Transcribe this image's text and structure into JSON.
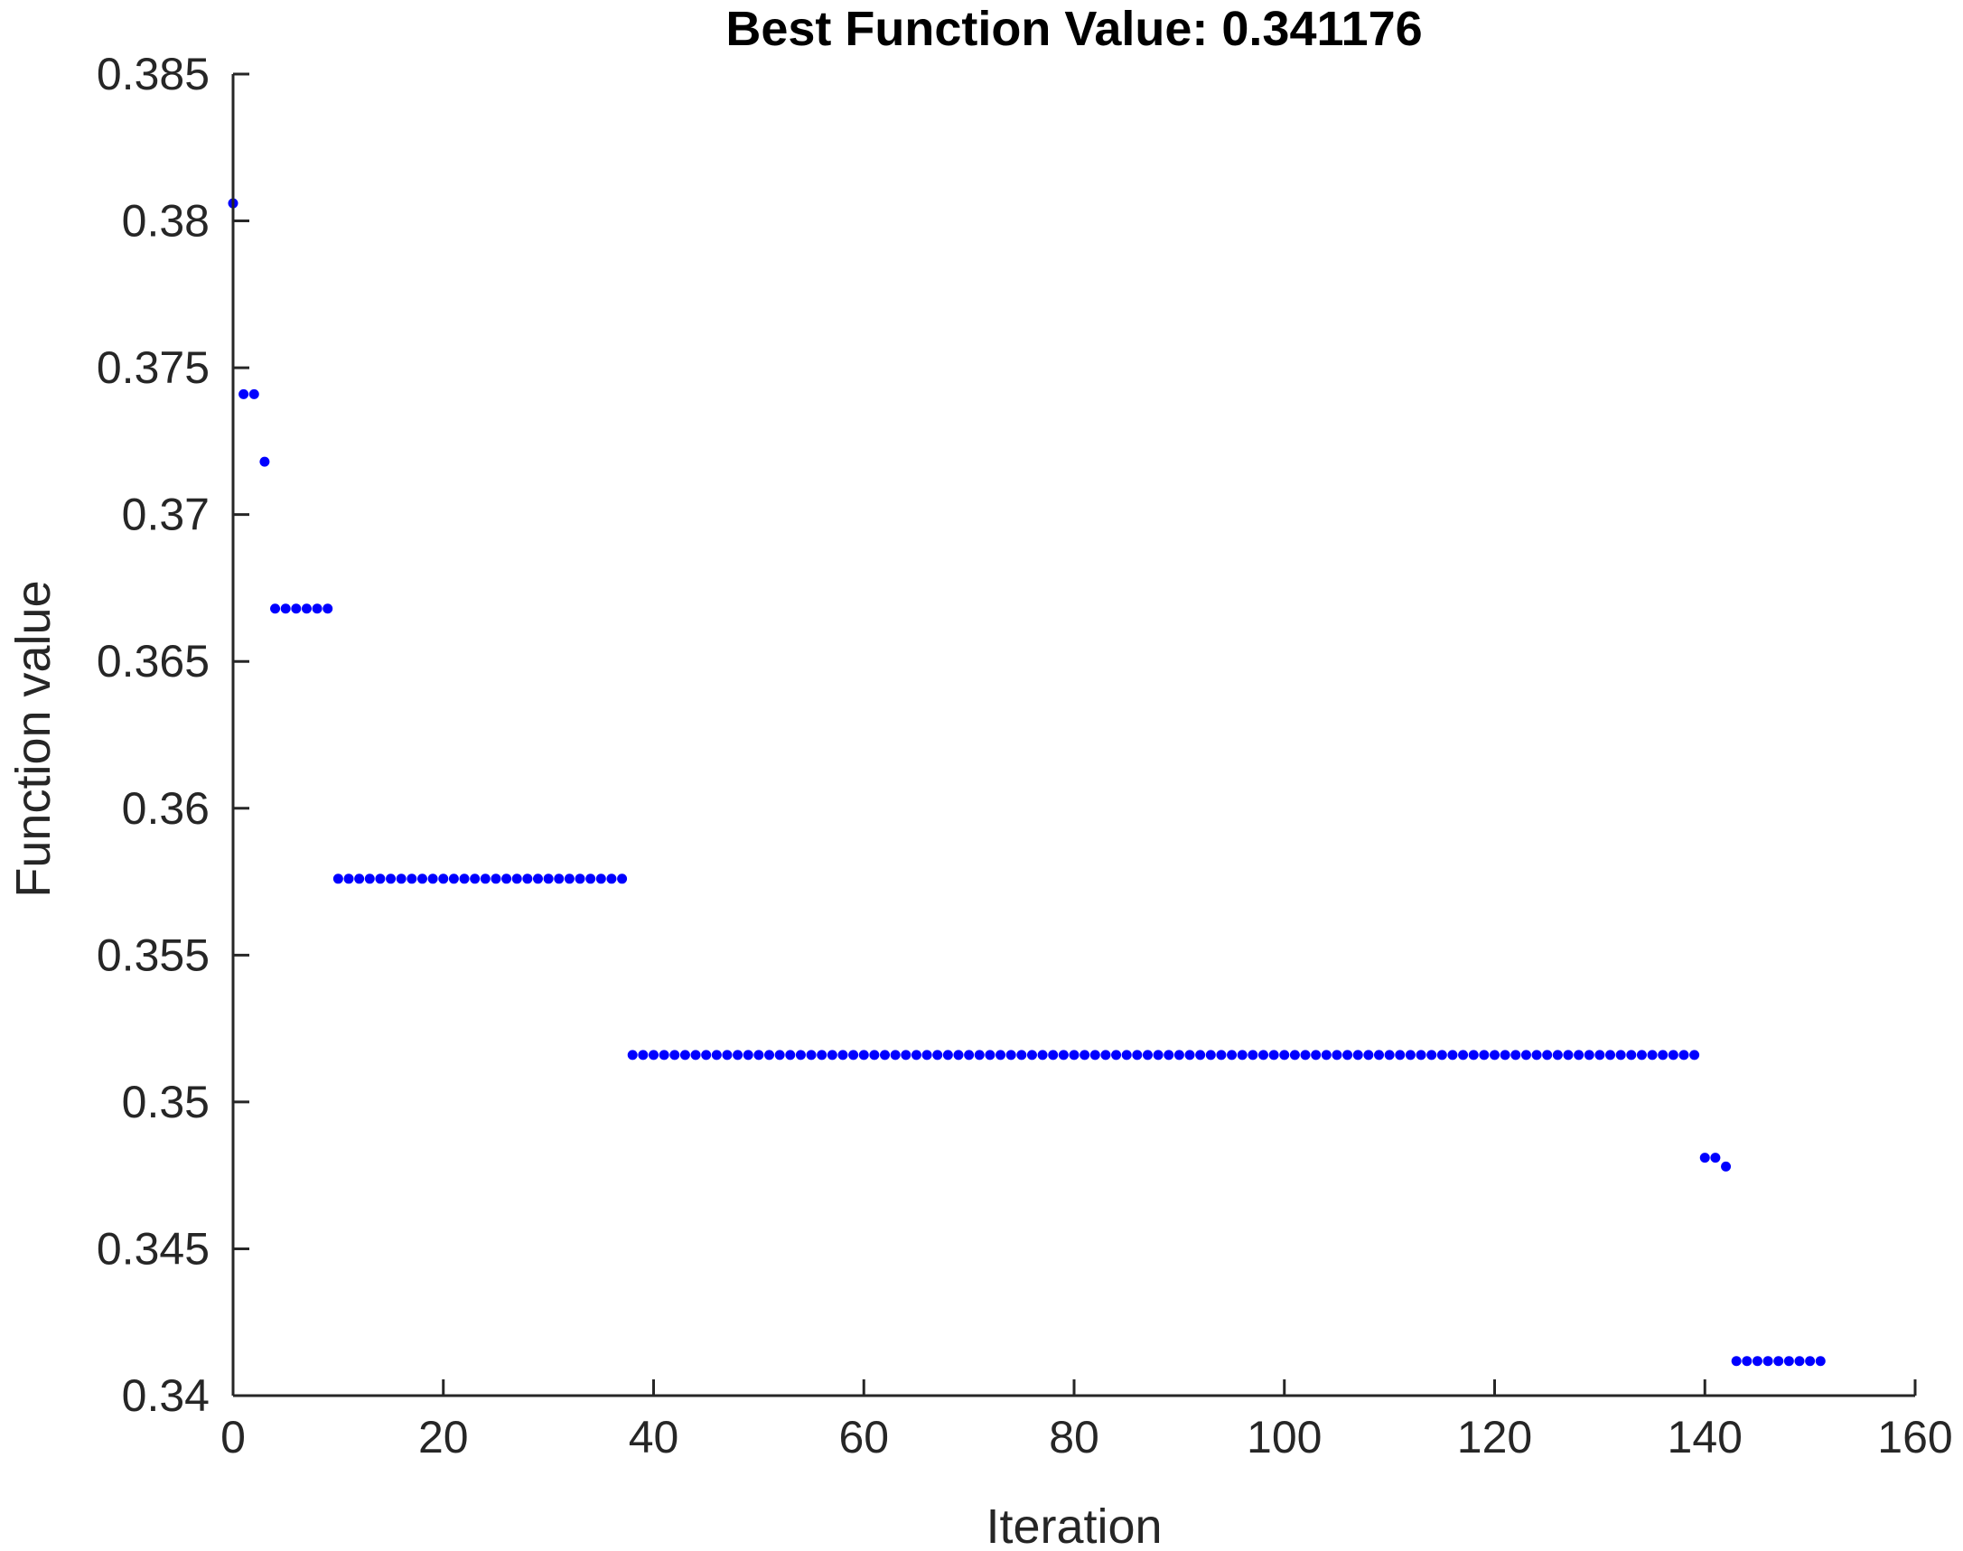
{
  "chart_data": {
    "type": "scatter",
    "title": "Best Function Value: 0.341176",
    "xlabel": "Iteration",
    "ylabel": "Function value",
    "xlim": [
      0,
      160
    ],
    "ylim": [
      0.34,
      0.385
    ],
    "xticks": [
      0,
      20,
      40,
      60,
      80,
      100,
      120,
      140,
      160
    ],
    "yticks": [
      0.34,
      0.345,
      0.35,
      0.355,
      0.36,
      0.365,
      0.37,
      0.375,
      0.38,
      0.385
    ],
    "xtick_labels": [
      "0",
      "20",
      "40",
      "60",
      "80",
      "100",
      "120",
      "140",
      "160"
    ],
    "ytick_labels": [
      "0.34",
      "0.345",
      "0.35",
      "0.355",
      "0.36",
      "0.365",
      "0.37",
      "0.375",
      "0.38",
      "0.385"
    ],
    "grid": false,
    "marker_color": "#0000ff",
    "segments": [
      {
        "x_start": 0,
        "x_end": 0,
        "y": 0.3806
      },
      {
        "x_start": 1,
        "x_end": 2,
        "y": 0.3741
      },
      {
        "x_start": 3,
        "x_end": 3,
        "y": 0.3718
      },
      {
        "x_start": 4,
        "x_end": 9,
        "y": 0.3668
      },
      {
        "x_start": 10,
        "x_end": 37,
        "y": 0.3576
      },
      {
        "x_start": 38,
        "x_end": 139,
        "y": 0.3516
      },
      {
        "x_start": 140,
        "x_end": 141,
        "y": 0.3481
      },
      {
        "x_start": 142,
        "x_end": 142,
        "y": 0.3478
      },
      {
        "x_start": 143,
        "x_end": 151,
        "y": 0.341176
      }
    ]
  }
}
